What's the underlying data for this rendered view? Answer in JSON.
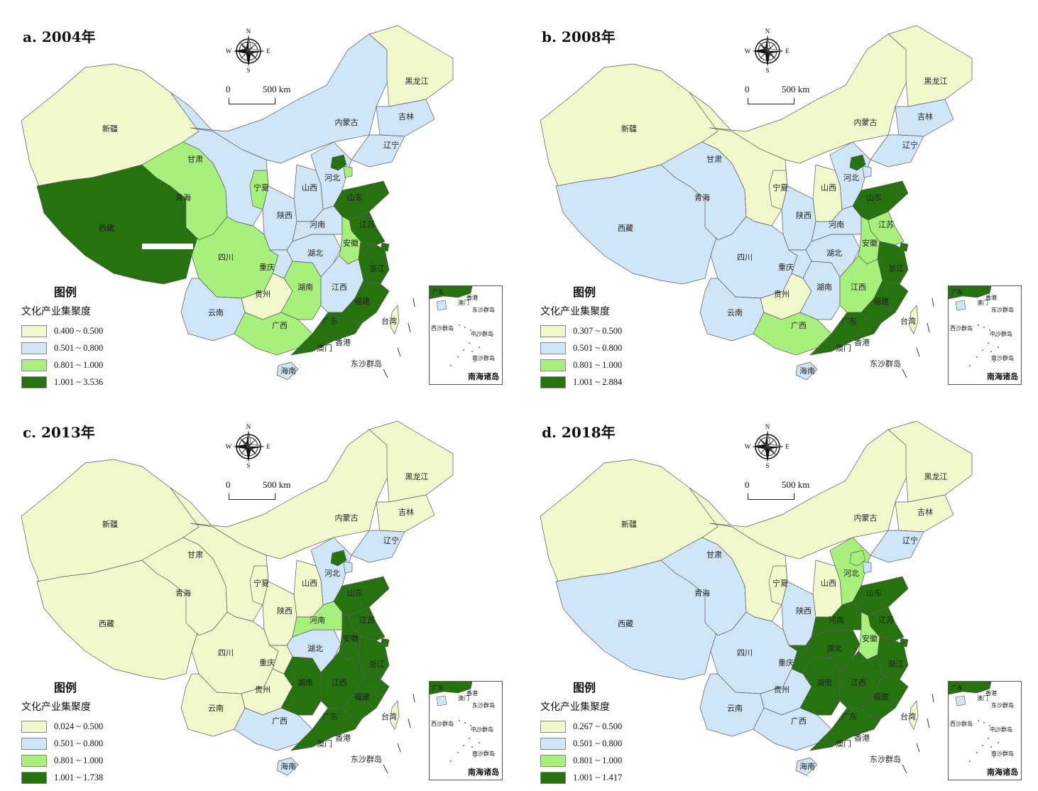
{
  "colors": {
    "c1": "#f0f8cc",
    "c2": "#cfe6f8",
    "c3": "#a7f07b",
    "c4": "#26720e",
    "border": "#5a5a5a"
  },
  "common": {
    "legend_title": "图例",
    "legend_subtitle": "文化产业集聚度",
    "compass": {
      "n": "N",
      "s": "S",
      "e": "E",
      "w": "W"
    },
    "scale_zero": "0",
    "scale_km": "500 km",
    "inset_title": "南海诸岛",
    "inset_labels": {
      "gd": "广东",
      "hk": "香港",
      "mo": "澳门",
      "dongsha": "东沙群岛",
      "xisha": "西沙群岛",
      "zhongsha": "中沙群岛",
      "nansha": "南沙群岛"
    }
  },
  "province_names": {
    "xinjiang": "新疆",
    "xizang": "西藏",
    "qinghai": "青海",
    "gansu": "甘肃",
    "neimenggu": "内蒙古",
    "heilongjiang": "黑龙江",
    "jilin": "吉林",
    "liaoning": "辽宁",
    "hebei": "河北",
    "shanxi": "山西",
    "shaanxi": "陕西",
    "ningxia": "宁夏",
    "sichuan": "四川",
    "chongqing": "重庆",
    "yunnan": "云南",
    "guizhou": "贵州",
    "guangxi": "广西",
    "hunan": "湖南",
    "hubei": "湖北",
    "henan": "河南",
    "shandong": "山东",
    "jiangsu": "江苏",
    "anhui": "安徽",
    "zhejiang": "浙江",
    "jiangxi": "江西",
    "fujian": "福建",
    "guangdong": "广东",
    "hainan": "海南",
    "taiwan": "台湾",
    "hongkong": "香港",
    "macau": "澳门",
    "dongsha": "东沙群岛"
  },
  "maps": [
    {
      "title": "a. 2004年",
      "legend": [
        "0.400 ~ 0.500",
        "0.501 ~ 0.800",
        "0.801 ~ 1.000",
        "1.001 ~ 3.536"
      ],
      "classes": {
        "xinjiang": 1,
        "xizang": 4,
        "qinghai": 3,
        "gansu": 2,
        "neimenggu": 2,
        "heilongjiang": 1,
        "jilin": 2,
        "liaoning": 2,
        "hebei": 2,
        "beijing": 4,
        "tianjin": 3,
        "shanxi": 2,
        "shaanxi": 2,
        "ningxia": 3,
        "sichuan": 3,
        "chongqing": 2,
        "yunnan": 2,
        "guizhou": 1,
        "guangxi": 3,
        "hunan": 3,
        "hubei": 2,
        "henan": 2,
        "shandong": 4,
        "jiangsu": 4,
        "anhui": 3,
        "zhejiang": 4,
        "shanghai": 4,
        "jiangxi": 2,
        "fujian": 4,
        "guangdong": 4,
        "hainan": 2,
        "taiwan": 1
      }
    },
    {
      "title": "b. 2008年",
      "legend": [
        "0.307 ~ 0.500",
        "0.501 ~ 0.800",
        "0.801 ~ 1.000",
        "1.001 ~ 2.884"
      ],
      "classes": {
        "xinjiang": 1,
        "xizang": 2,
        "qinghai": 2,
        "gansu": 1,
        "neimenggu": 1,
        "heilongjiang": 1,
        "jilin": 2,
        "liaoning": 2,
        "hebei": 2,
        "beijing": 4,
        "tianjin": 2,
        "shanxi": 1,
        "shaanxi": 2,
        "ningxia": 1,
        "sichuan": 2,
        "chongqing": 2,
        "yunnan": 2,
        "guizhou": 1,
        "guangxi": 3,
        "hunan": 2,
        "hubei": 2,
        "henan": 2,
        "shandong": 4,
        "jiangsu": 3,
        "anhui": 3,
        "zhejiang": 4,
        "shanghai": 4,
        "jiangxi": 3,
        "fujian": 4,
        "guangdong": 4,
        "hainan": 2,
        "taiwan": 1
      }
    },
    {
      "title": "c. 2013年",
      "legend": [
        "0.024 ~ 0.500",
        "0.501 ~ 0.800",
        "0.801 ~ 1.000",
        "1.001 ~ 1.738"
      ],
      "classes": {
        "xinjiang": 1,
        "xizang": 1,
        "qinghai": 1,
        "gansu": 1,
        "neimenggu": 1,
        "heilongjiang": 1,
        "jilin": 1,
        "liaoning": 2,
        "hebei": 2,
        "beijing": 4,
        "tianjin": 2,
        "shanxi": 1,
        "shaanxi": 1,
        "ningxia": 1,
        "sichuan": 1,
        "chongqing": 1,
        "yunnan": 1,
        "guizhou": 1,
        "guangxi": 2,
        "hunan": 4,
        "hubei": 2,
        "henan": 3,
        "shandong": 4,
        "jiangsu": 4,
        "anhui": 4,
        "zhejiang": 4,
        "shanghai": 4,
        "jiangxi": 4,
        "fujian": 4,
        "guangdong": 4,
        "hainan": 2,
        "taiwan": 1
      }
    },
    {
      "title": "d. 2018年",
      "legend": [
        "0.267 ~ 0.500",
        "0.501 ~ 0.800",
        "0.801 ~ 1.000",
        "1.001 ~ 1.417"
      ],
      "classes": {
        "xinjiang": 1,
        "xizang": 2,
        "qinghai": 2,
        "gansu": 1,
        "neimenggu": 1,
        "heilongjiang": 1,
        "jilin": 1,
        "liaoning": 2,
        "hebei": 3,
        "beijing": 3,
        "tianjin": 2,
        "shanxi": 1,
        "shaanxi": 2,
        "ningxia": 1,
        "sichuan": 2,
        "chongqing": 4,
        "yunnan": 2,
        "guizhou": 2,
        "guangxi": 2,
        "hunan": 4,
        "hubei": 4,
        "henan": 4,
        "shandong": 4,
        "jiangsu": 4,
        "anhui": 3,
        "zhejiang": 4,
        "shanghai": 4,
        "jiangxi": 4,
        "fujian": 4,
        "guangdong": 4,
        "hainan": 2,
        "taiwan": 1
      }
    }
  ]
}
